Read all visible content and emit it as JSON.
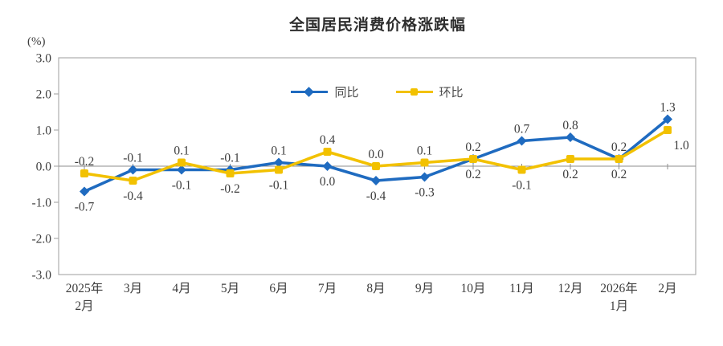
{
  "title": "全国居民消费价格涨跌幅",
  "y_unit": "(%)",
  "chart_data": {
    "type": "line",
    "categories": [
      [
        "2025年",
        "2月"
      ],
      [
        "3月"
      ],
      [
        "4月"
      ],
      [
        "5月"
      ],
      [
        "6月"
      ],
      [
        "7月"
      ],
      [
        "8月"
      ],
      [
        "9月"
      ],
      [
        "10月"
      ],
      [
        "11月"
      ],
      [
        "12月"
      ],
      [
        "2026年",
        "1月"
      ],
      [
        "2月"
      ]
    ],
    "series": [
      {
        "name": "同比",
        "marker": "diamond",
        "color": "#1F6BC0",
        "values": [
          -0.7,
          -0.1,
          -0.1,
          -0.1,
          0.1,
          0.0,
          -0.4,
          -0.3,
          0.2,
          0.7,
          0.8,
          0.2,
          1.3
        ]
      },
      {
        "name": "环比",
        "marker": "square",
        "color": "#F2C100",
        "values": [
          -0.2,
          -0.4,
          0.1,
          -0.2,
          -0.1,
          0.4,
          0.0,
          0.1,
          0.2,
          -0.1,
          0.2,
          0.2,
          1.0
        ]
      }
    ],
    "ylim": [
      -3.0,
      3.0
    ],
    "yticks": [
      "3.0",
      "2.0",
      "1.0",
      "0.0",
      "-1.0",
      "-2.0",
      "-3.0"
    ],
    "grid": false,
    "legend_position": "top-center",
    "axis_color": "#ADADAD",
    "zero_line_color": "#8C8C8C",
    "label_color": "#3D3D3D"
  }
}
